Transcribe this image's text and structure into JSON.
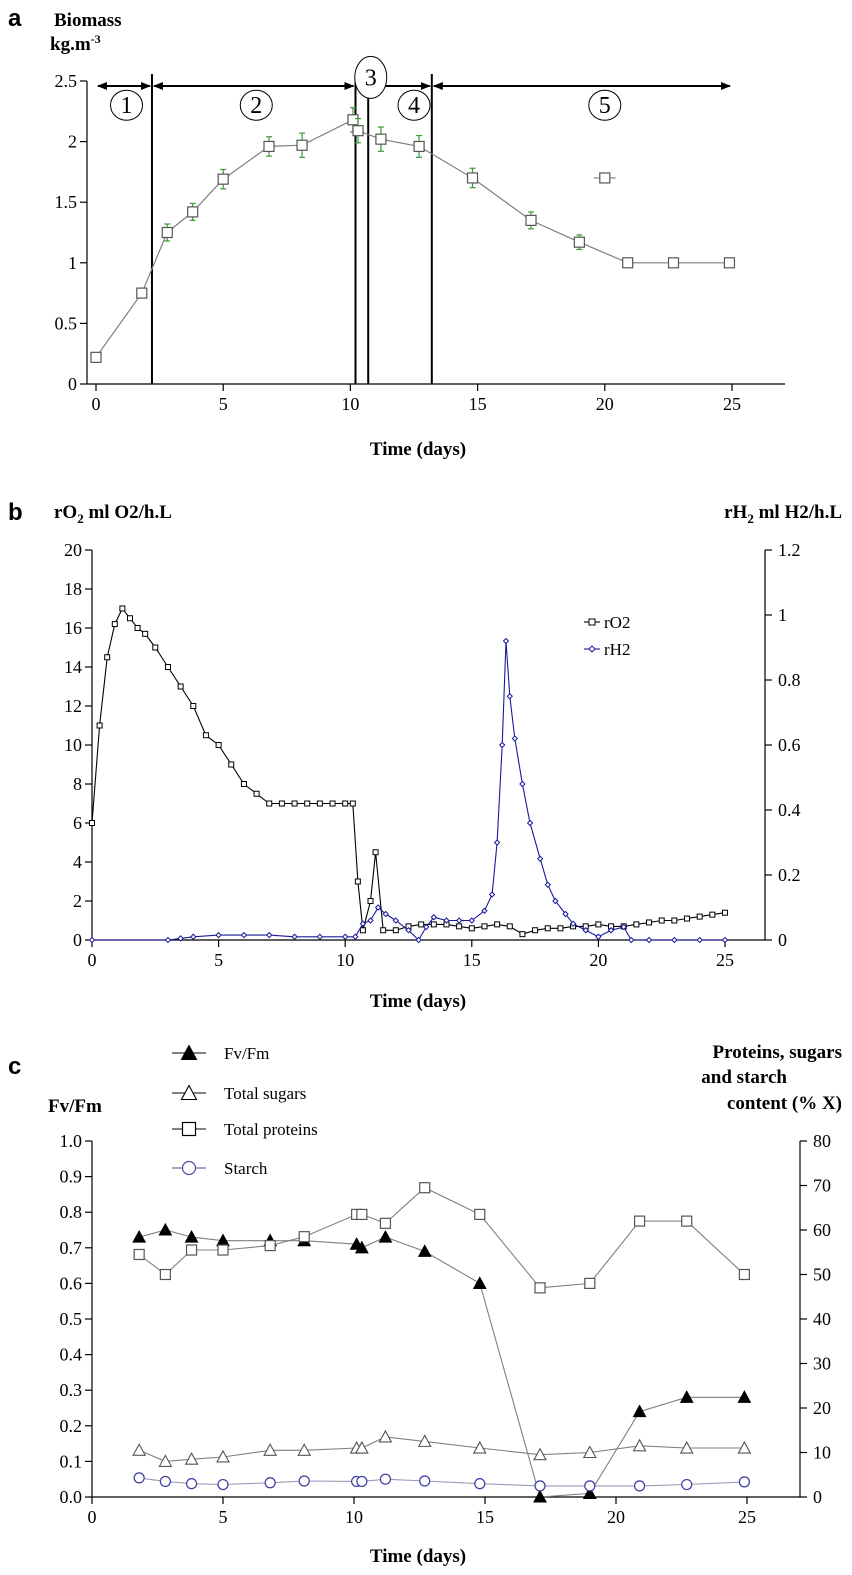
{
  "colors": {
    "axis": "#000000",
    "series_line": "#7f7f7f",
    "error_bar": "#3a9a3a",
    "rH2": "#1a1a9a",
    "starch": "#3a3aa0",
    "marker_stroke": "#555555"
  },
  "chart_data": [
    {
      "panel": "a",
      "type": "line",
      "ylabel": "Biomass",
      "ylabel_unit": "kg.m",
      "ylabel_unit_sup": "-3",
      "xlabel": "Time (days)",
      "xlim": [
        0,
        25
      ],
      "ylim": [
        0,
        2.5
      ],
      "xticks": [
        0,
        5,
        10,
        15,
        20,
        25
      ],
      "yticks": [
        0,
        0.5,
        1,
        1.5,
        2,
        2.5
      ],
      "series": [
        {
          "marker": "open-square",
          "x": [
            0,
            1.8,
            2.8,
            3.8,
            5,
            6.8,
            8.1,
            10.1,
            10.3,
            11.2,
            12.7,
            14.8,
            17.1,
            19,
            20.9,
            22.7,
            24.9
          ],
          "y": [
            0.22,
            0.75,
            1.25,
            1.42,
            1.69,
            1.96,
            1.97,
            2.18,
            2.09,
            2.02,
            1.96,
            1.7,
            1.35,
            1.17,
            1.0,
            1.0,
            1.0
          ],
          "error": [
            0,
            0,
            0.07,
            0.07,
            0.08,
            0.08,
            0.1,
            0.1,
            0.1,
            0.1,
            0.09,
            0.08,
            0.07,
            0.06,
            0.03,
            0.03,
            0.03
          ]
        }
      ],
      "extra_point": {
        "x": 20,
        "y": 1.7
      },
      "phase_boundaries": [
        2.2,
        10.2,
        10.7,
        13.2
      ],
      "phase_span": [
        0,
        25
      ],
      "phases": [
        {
          "label": "1",
          "x": 1.2,
          "y": 2.3
        },
        {
          "label": "2",
          "x": 6.3,
          "y": 2.3
        },
        {
          "label": "3",
          "x": 10.8,
          "y": 2.53
        },
        {
          "label": "4",
          "x": 12.5,
          "y": 2.3
        },
        {
          "label": "5",
          "x": 20,
          "y": 2.3
        }
      ]
    },
    {
      "panel": "b",
      "type": "line",
      "ylabel_left": "rO",
      "ylabel_left_sub": "2",
      "ylabel_left_unit": " ml O2/h.L",
      "ylabel_right": "rH",
      "ylabel_right_sub": "2",
      "ylabel_right_unit": " ml H2/h.L",
      "xlabel": "Time (days)",
      "xlim": [
        0,
        25
      ],
      "ylim_left": [
        0,
        20
      ],
      "ylim_right": [
        0,
        1.2
      ],
      "xticks": [
        0,
        5,
        10,
        15,
        20,
        25
      ],
      "yticks_left": [
        0,
        2,
        4,
        6,
        8,
        10,
        12,
        14,
        16,
        18,
        20
      ],
      "yticks_right": [
        0,
        0.2,
        0.4,
        0.6,
        0.8,
        1,
        1.2
      ],
      "series": [
        {
          "name": "rO2",
          "axis": "left",
          "x": [
            0,
            0.3,
            0.6,
            0.9,
            1.2,
            1.5,
            1.8,
            2.1,
            2.5,
            3.0,
            3.5,
            4.0,
            4.5,
            5.0,
            5.5,
            6.0,
            6.5,
            7.0,
            7.5,
            8.0,
            8.5,
            9.0,
            9.5,
            10.0,
            10.3,
            10.5,
            10.7,
            11.0,
            11.2,
            11.5,
            12.0,
            12.5,
            13.0,
            13.5,
            14.0,
            14.5,
            15.0,
            15.5,
            16.0,
            16.5,
            17.0,
            17.5,
            18.0,
            18.5,
            19.0,
            19.5,
            20.0,
            20.5,
            21.0,
            21.5,
            22.0,
            22.5,
            23.0,
            23.5,
            24.0,
            24.5,
            25.0
          ],
          "y": [
            6,
            11,
            14.5,
            16.2,
            17,
            16.5,
            16,
            15.7,
            15,
            14,
            13,
            12,
            10.5,
            10,
            9,
            8,
            7.5,
            7,
            7,
            7,
            7,
            7,
            7,
            7,
            7,
            3,
            0.5,
            2,
            4.5,
            0.5,
            0.5,
            0.7,
            0.8,
            0.8,
            0.8,
            0.7,
            0.6,
            0.7,
            0.8,
            0.7,
            0.3,
            0.5,
            0.6,
            0.6,
            0.7,
            0.7,
            0.8,
            0.7,
            0.7,
            0.8,
            0.9,
            1.0,
            1.0,
            1.1,
            1.2,
            1.3,
            1.4
          ]
        },
        {
          "name": "rH2",
          "axis": "right",
          "x": [
            0,
            3,
            3.5,
            4,
            5,
            6,
            7,
            8,
            9,
            10,
            10.4,
            10.7,
            11,
            11.3,
            11.6,
            12,
            12.5,
            12.9,
            13.2,
            13.5,
            14,
            14.5,
            15,
            15.5,
            15.8,
            16,
            16.2,
            16.35,
            16.5,
            16.7,
            17,
            17.3,
            17.7,
            18,
            18.3,
            18.7,
            19,
            19.5,
            20,
            20.5,
            21,
            21.3,
            22,
            23,
            24,
            25
          ],
          "y": [
            0,
            0,
            0.005,
            0.01,
            0.015,
            0.015,
            0.015,
            0.01,
            0.01,
            0.01,
            0.01,
            0.05,
            0.06,
            0.1,
            0.08,
            0.06,
            0.03,
            0,
            0.04,
            0.07,
            0.06,
            0.06,
            0.06,
            0.09,
            0.14,
            0.3,
            0.6,
            0.92,
            0.75,
            0.62,
            0.48,
            0.36,
            0.25,
            0.17,
            0.12,
            0.08,
            0.05,
            0.03,
            0.01,
            0.03,
            0.04,
            0,
            0,
            0,
            0,
            0
          ]
        }
      ]
    },
    {
      "panel": "c",
      "type": "line",
      "ylabel_left": "Fv/Fm",
      "ylabel_right_lines": [
        "Proteins, sugars",
        "and starch",
        "content (%   X)"
      ],
      "xlabel": "Time (days)",
      "xlim": [
        0,
        25
      ],
      "ylim_left": [
        0,
        1.0
      ],
      "ylim_right": [
        0,
        80
      ],
      "xticks": [
        0,
        5,
        10,
        15,
        20,
        25
      ],
      "yticks_left": [
        "0.0",
        "0.1",
        "0.2",
        "0.3",
        "0.4",
        "0.5",
        "0.6",
        "0.7",
        "0.8",
        "0.9",
        "1.0"
      ],
      "yticks_right": [
        0,
        10,
        20,
        30,
        40,
        50,
        60,
        70,
        80
      ],
      "x": [
        1.8,
        2.8,
        3.8,
        5,
        6.8,
        8.1,
        10.1,
        10.3,
        11.2,
        12.7,
        14.8,
        17.1,
        19,
        20.9,
        22.7,
        24.9
      ],
      "series": [
        {
          "name": "Fv/Fm",
          "axis": "left",
          "marker": "filled-triangle",
          "values": [
            0.73,
            0.75,
            0.73,
            0.72,
            0.72,
            0.72,
            0.71,
            0.7,
            0.73,
            0.69,
            0.6,
            0.0,
            0.01,
            0.24,
            0.28,
            0.28
          ]
        },
        {
          "name": "Total sugars",
          "axis": "right",
          "marker": "open-triangle",
          "values": [
            10.5,
            8,
            8.5,
            9,
            10.5,
            10.5,
            11,
            11,
            13.5,
            12.5,
            11,
            9.5,
            10,
            11.5,
            11,
            11
          ]
        },
        {
          "name": "Total proteins",
          "axis": "right",
          "marker": "open-square",
          "values": [
            54.5,
            50,
            55.5,
            55.5,
            56.5,
            58.5,
            63.5,
            63.5,
            61.5,
            69.5,
            63.5,
            47,
            48,
            62,
            62,
            50
          ]
        },
        {
          "name": "Starch",
          "axis": "right",
          "marker": "open-circle",
          "values": [
            4.3,
            3.5,
            3,
            2.8,
            3.2,
            3.6,
            3.5,
            3.5,
            4,
            3.6,
            3,
            2.5,
            2.5,
            2.5,
            2.8,
            3.4
          ]
        }
      ]
    }
  ]
}
